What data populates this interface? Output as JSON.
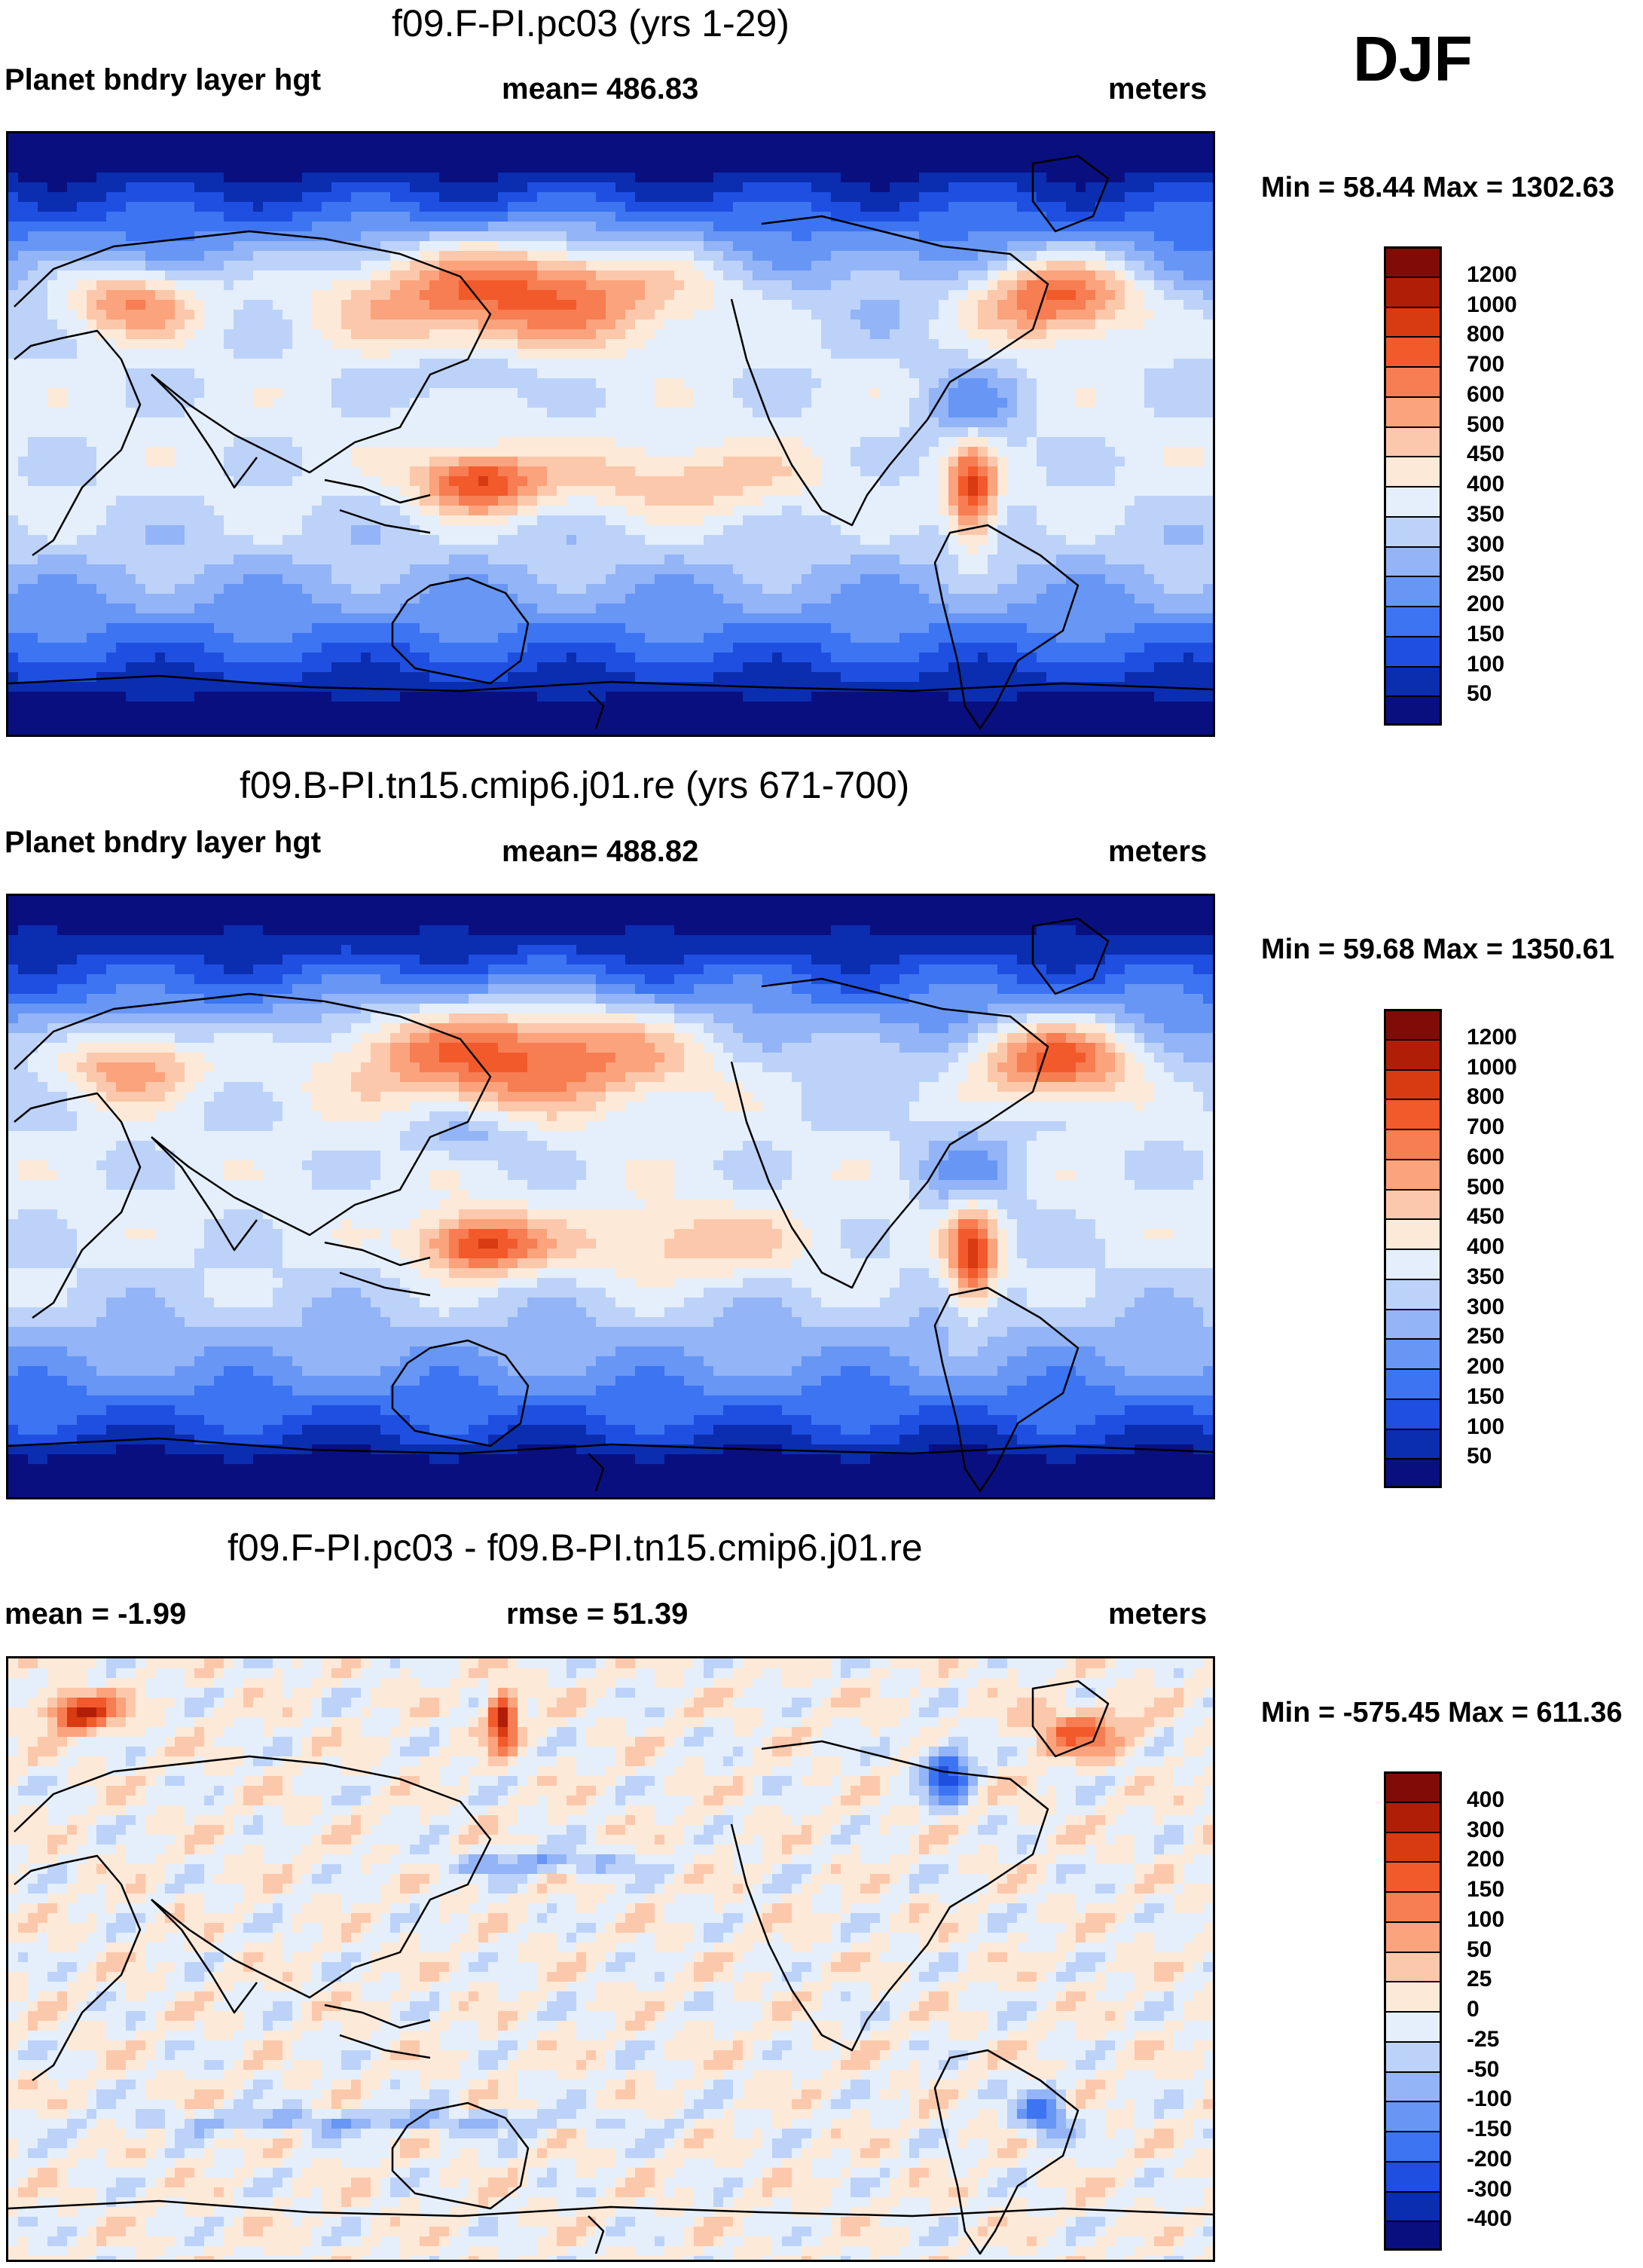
{
  "season": "DJF",
  "colors": {
    "blue_red": [
      "#0a0f80",
      "#0b2db0",
      "#1f4fe0",
      "#3c74f2",
      "#6796f5",
      "#93b4f6",
      "#bcd2f8",
      "#e4effb",
      "#fde9d8",
      "#fcc8ab",
      "#fba37c",
      "#f77d52",
      "#f25a2b",
      "#d83a11",
      "#b11e08",
      "#800c05"
    ],
    "land_line": "#000000"
  },
  "chart_data": [
    {
      "type": "heatmap",
      "title": "f09.F-PI.pc03 (yrs 1-29)",
      "left_label": "Planet bndry layer hgt",
      "center_label": "mean= 486.83",
      "right_label": "meters",
      "minmax": "Min =  58.44 Max = 1302.63",
      "variable": "PBLH",
      "units": "meters",
      "mean": 486.83,
      "min": 58.44,
      "max": 1302.63,
      "colorbar_ticks": [
        "1200",
        "1000",
        "800",
        "700",
        "600",
        "500",
        "450",
        "400",
        "350",
        "300",
        "250",
        "200",
        "150",
        "100",
        "50"
      ]
    },
    {
      "type": "heatmap",
      "title": "f09.B-PI.tn15.cmip6.j01.re (yrs 671-700)",
      "left_label": "Planet bndry layer hgt",
      "center_label": "mean= 488.82",
      "right_label": "meters",
      "minmax": "Min =  59.68 Max = 1350.61",
      "variable": "PBLH",
      "units": "meters",
      "mean": 488.82,
      "min": 59.68,
      "max": 1350.61,
      "colorbar_ticks": [
        "1200",
        "1000",
        "800",
        "700",
        "600",
        "500",
        "450",
        "400",
        "350",
        "300",
        "250",
        "200",
        "150",
        "100",
        "50"
      ]
    },
    {
      "type": "heatmap",
      "title": "f09.F-PI.pc03 - f09.B-PI.tn15.cmip6.j01.re",
      "left_label": "mean =  -1.99",
      "center_label": "rmse =  51.39",
      "right_label": "meters",
      "minmax": "Min = -575.45 Max = 611.36",
      "units": "meters",
      "mean": -1.99,
      "rmse": 51.39,
      "min": -575.45,
      "max": 611.36,
      "colorbar_ticks": [
        "400",
        "300",
        "200",
        "150",
        "100",
        "50",
        "25",
        "0",
        "-25",
        "-50",
        "-100",
        "-150",
        "-200",
        "-300",
        "-400"
      ]
    }
  ]
}
